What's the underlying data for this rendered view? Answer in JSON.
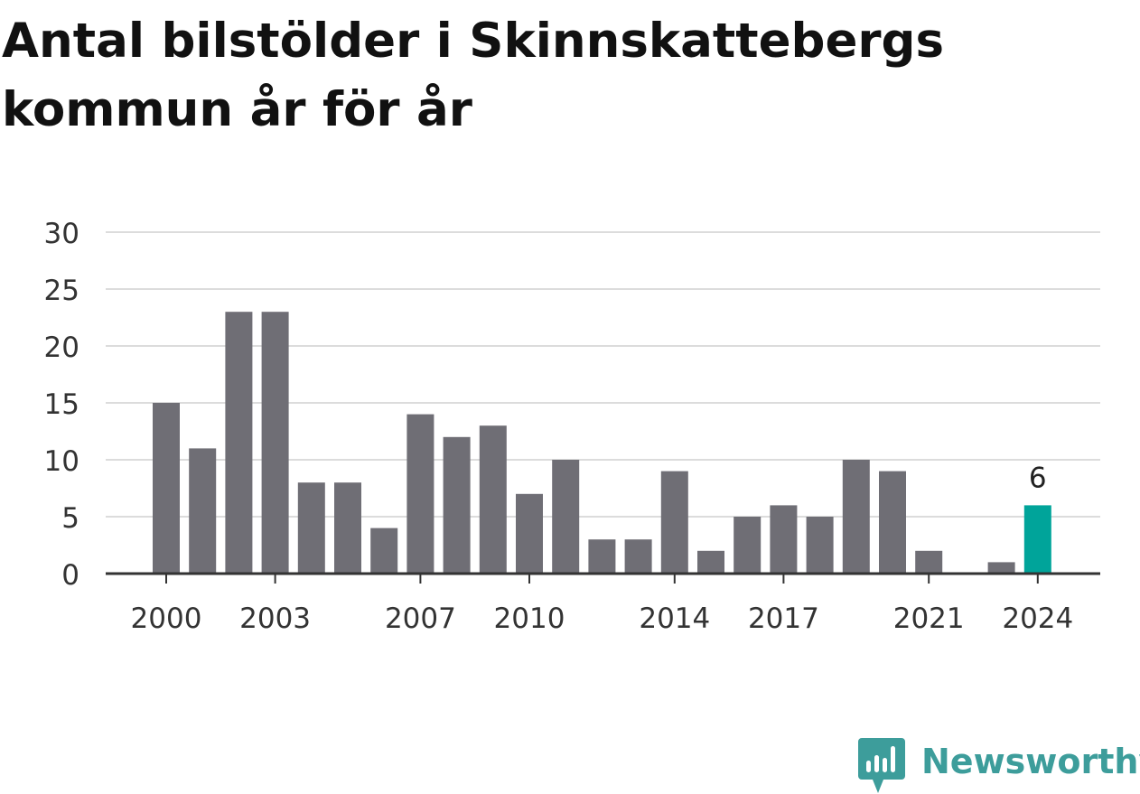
{
  "title": "Antal bilstölder i Skinnskattebergs kommun år för år",
  "brand": {
    "name": "Newsworthy",
    "color": "#3d9d9b",
    "icon": "newsworthy-logo-icon"
  },
  "chart_data": {
    "type": "bar",
    "title": "Antal bilstölder i Skinnskattebergs kommun år för år",
    "xlabel": "",
    "ylabel": "",
    "categories": [
      "2000",
      "2001",
      "2002",
      "2003",
      "2004",
      "2005",
      "2006",
      "2007",
      "2008",
      "2009",
      "2010",
      "2011",
      "2012",
      "2013",
      "2014",
      "2015",
      "2016",
      "2017",
      "2018",
      "2019",
      "2020",
      "2021",
      "2022",
      "2023",
      "2024"
    ],
    "values": [
      15,
      11,
      23,
      23,
      8,
      8,
      4,
      14,
      12,
      13,
      7,
      10,
      3,
      3,
      9,
      2,
      5,
      6,
      5,
      10,
      9,
      2,
      0,
      1,
      6
    ],
    "x_tick_labels": [
      "2000",
      "2003",
      "2007",
      "2010",
      "2014",
      "2017",
      "2021",
      "2024"
    ],
    "y_ticks": [
      0,
      5,
      10,
      15,
      20,
      25,
      30
    ],
    "ylim": [
      0,
      30
    ],
    "grid": true,
    "legend": "none",
    "bar_color": "#6f6e75",
    "highlight": {
      "category": "2024",
      "color": "#00a49a",
      "label": "6"
    }
  }
}
